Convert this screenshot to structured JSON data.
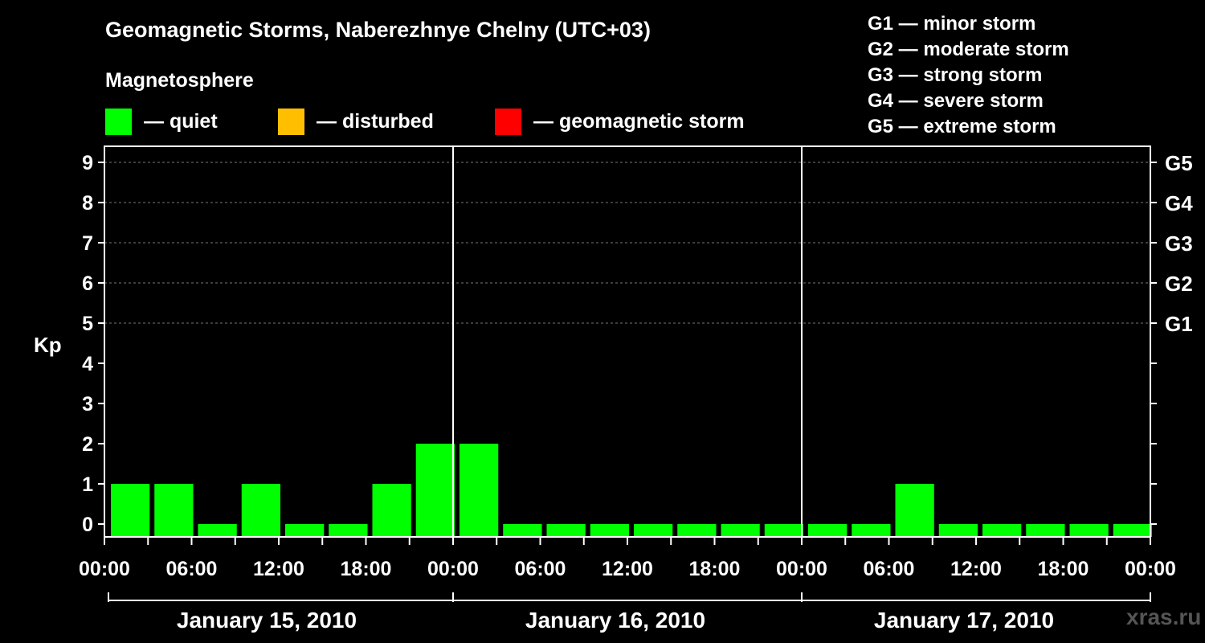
{
  "title": "Geomagnetic Storms, Naberezhnye Chelny (UTC+03)",
  "subtitle": "Magnetosphere",
  "legend": [
    {
      "label": "— quiet",
      "color": "#00ff00"
    },
    {
      "label": "— disturbed",
      "color": "#ffbf00"
    },
    {
      "label": "— geomagnetic storm",
      "color": "#ff0000"
    }
  ],
  "storm_levels": [
    "G1 — minor storm",
    "G2 — moderate storm",
    "G3 — strong storm",
    "G4 — severe storm",
    "G5 — extreme storm"
  ],
  "watermark": "xras.ru",
  "chart_data": {
    "type": "bar",
    "ylabel": "Kp",
    "ylim": [
      0,
      9
    ],
    "yticks": [
      0,
      1,
      2,
      3,
      4,
      5,
      6,
      7,
      8,
      9
    ],
    "right_axis_labels": [
      {
        "kp": 5,
        "label": "G1"
      },
      {
        "kp": 6,
        "label": "G2"
      },
      {
        "kp": 7,
        "label": "G3"
      },
      {
        "kp": 8,
        "label": "G4"
      },
      {
        "kp": 9,
        "label": "G5"
      }
    ],
    "x_tick_labels": [
      "00:00",
      "06:00",
      "12:00",
      "18:00",
      "00:00",
      "06:00",
      "12:00",
      "18:00",
      "00:00",
      "06:00",
      "12:00",
      "18:00",
      "00:00"
    ],
    "days": [
      "January 15, 2010",
      "January 16, 2010",
      "January 17, 2010"
    ],
    "interval_hours": 3,
    "series": [
      {
        "color": "#00ff00",
        "values": [
          1,
          1,
          0,
          1,
          0,
          0,
          1,
          2,
          2,
          0,
          0,
          0,
          0,
          0,
          0,
          0,
          0,
          0,
          1,
          0,
          0,
          0,
          0,
          0
        ]
      }
    ],
    "grid": "dashed at Kp 5-9"
  }
}
